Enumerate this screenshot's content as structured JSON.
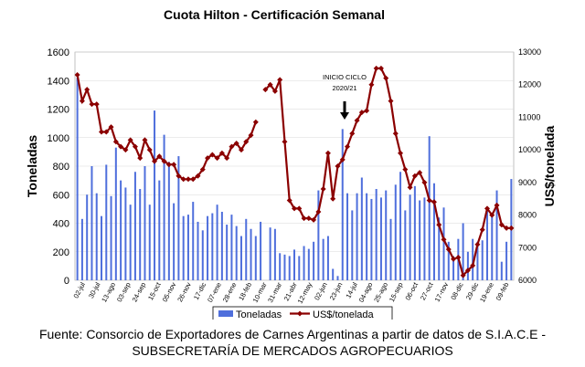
{
  "chart_data": {
    "type": "bar+line",
    "title": "Cuota Hilton - Certificación Semanal",
    "annotation": "INICIO CICLO 2020/21",
    "y_left": {
      "label": "Toneladas",
      "range": [
        0,
        1600
      ],
      "ticks": [
        0,
        200,
        400,
        600,
        800,
        1000,
        1200,
        1400,
        1600
      ]
    },
    "y_right": {
      "label": "US$/tonelada",
      "range": [
        6000,
        13000
      ],
      "ticks": [
        6000,
        7000,
        8000,
        9000,
        10000,
        11000,
        12000,
        13000
      ]
    },
    "x_tick_labels": [
      "02-jul",
      "13-ago",
      "24-sep",
      "05-nov",
      "17-dic",
      "28-ene",
      "10-mar",
      "21-abr",
      "02-jun",
      "14-jul",
      "25-ago",
      "06-oct",
      "17-nov",
      "29-dic",
      "09-feb",
      "30-jul",
      "03-sep",
      "15-oct",
      "26-nov",
      "07-ene",
      "18-feb",
      "31-mar",
      "12-may",
      "23-jun",
      "04-ago",
      "15-sep",
      "27-oct",
      "08-dic",
      "19-ene"
    ],
    "x_tick_labels_in_order": [
      "02-jul",
      "30-jul",
      "13-ago",
      "03-sep",
      "24-sep",
      "15-oct",
      "05-nov",
      "26-nov",
      "17-dic",
      "07-ene",
      "28-ene",
      "18-feb",
      "10-mar",
      "31-mar",
      "21-abr",
      "12-may",
      "02-jun",
      "23-jun",
      "14-jul",
      "04-ago",
      "25-ago",
      "15-sep",
      "06-oct",
      "27-oct",
      "17-nov",
      "08-dic",
      "29-dic",
      "19-ene",
      "09-feb"
    ],
    "legend": {
      "position": "bottom",
      "entries": [
        "Toneladas",
        "US$/tonelada"
      ]
    },
    "colors": {
      "bars": "#4f6fdc",
      "line": "#8b0000"
    },
    "series": [
      {
        "name": "Toneladas",
        "axis": "left",
        "style": "bar",
        "values": [
          1420,
          430,
          600,
          800,
          610,
          450,
          810,
          590,
          930,
          700,
          650,
          530,
          760,
          640,
          800,
          530,
          1190,
          700,
          1020,
          830,
          540,
          870,
          450,
          460,
          550,
          410,
          350,
          450,
          470,
          530,
          480,
          390,
          460,
          380,
          310,
          430,
          360,
          310,
          410,
          0,
          370,
          360,
          190,
          180,
          170,
          215,
          170,
          240,
          220,
          270,
          630,
          290,
          310,
          80,
          30,
          1060,
          610,
          490,
          610,
          720,
          610,
          570,
          640,
          580,
          630,
          430,
          670,
          760,
          490,
          600,
          660,
          560,
          580,
          1010,
          680,
          440,
          510,
          270,
          170,
          290,
          400,
          200,
          290,
          270,
          280,
          510,
          460,
          630,
          130,
          270,
          710
        ]
      },
      {
        "name": "US$/tonelada",
        "axis": "right",
        "style": "line",
        "values": [
          12300,
          11500,
          11850,
          11400,
          11400,
          10550,
          10550,
          10700,
          10250,
          10100,
          10000,
          10300,
          10100,
          9750,
          10300,
          10000,
          9650,
          9800,
          9650,
          9550,
          9550,
          9200,
          9100,
          9100,
          9100,
          9200,
          9400,
          9750,
          9850,
          9750,
          9900,
          9750,
          10100,
          10200,
          10000,
          10250,
          10450,
          10850,
          0,
          11850,
          12000,
          11800,
          12150,
          10250,
          8450,
          8200,
          8200,
          7900,
          7900,
          7850,
          8100,
          8800,
          9900,
          8500,
          9500,
          9700,
          10100,
          10500,
          10900,
          11150,
          11200,
          12000,
          12500,
          12500,
          12200,
          11500,
          10500,
          9900,
          9400,
          8850,
          9200,
          9300,
          9000,
          8450,
          8400,
          7700,
          7250,
          6950,
          6650,
          6700,
          6150,
          6300,
          6450,
          7100,
          7550,
          8200,
          8000,
          8300,
          7700,
          7600,
          7600
        ]
      }
    ]
  },
  "source": {
    "line1": "Fuente: Consorcio de Exportadores de Carnes Argentinas a partir de datos de S.I.A.C.E -",
    "line2": "SUBSECRETARÍA DE MERCADOS AGROPECUARIOS"
  }
}
